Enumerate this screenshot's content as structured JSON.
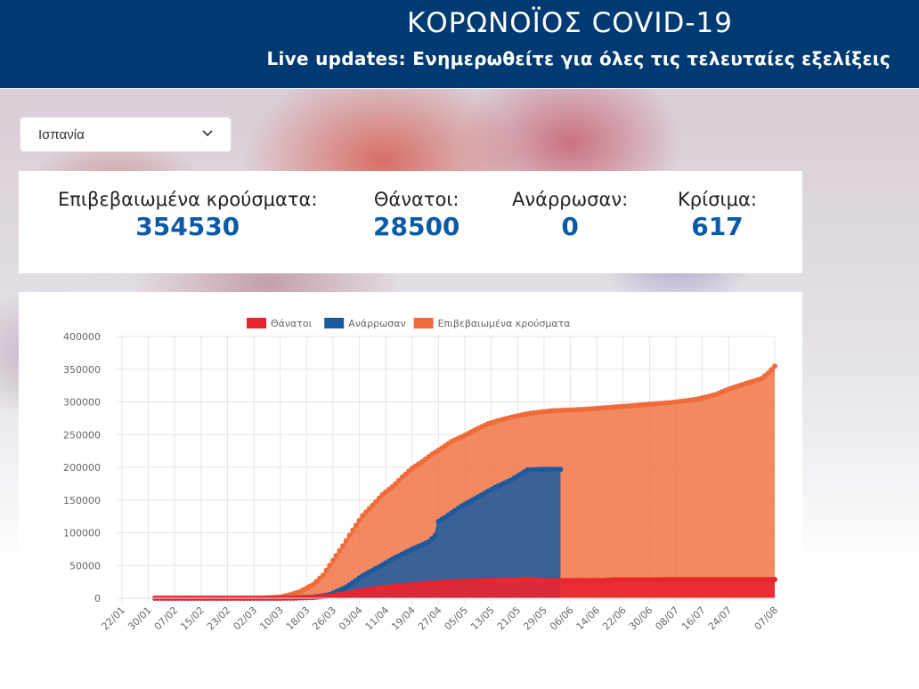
{
  "header": {
    "title": "ΚΟΡΩΝΟΪΟΣ COVID-19",
    "subtitle": "Live updates: Ενημερωθείτε για όλες τις τελευταίες εξελίξεις"
  },
  "country_select": {
    "selected": "Ισπανία",
    "icon": "chevron-down-icon"
  },
  "stats": [
    {
      "label": "Επιβεβαιωμένα κρούσματα:",
      "value": "354530"
    },
    {
      "label": "Θάνατοι:",
      "value": "28500"
    },
    {
      "label": "Ανάρρωσαν:",
      "value": "0"
    },
    {
      "label": "Κρίσιμα:",
      "value": "617"
    }
  ],
  "colors": {
    "header_bg": "#003a72",
    "stat_value": "#0b5aa5",
    "deaths": "#e9252f",
    "recovered": "#1c5aa0",
    "confirmed": "#ef6b3a"
  },
  "chart_data": {
    "type": "area",
    "legend_position": "top",
    "grid": true,
    "ylim": [
      0,
      400000
    ],
    "yticks": [
      "0",
      "50000",
      "100000",
      "150000",
      "200000",
      "250000",
      "300000",
      "350000",
      "400000"
    ],
    "x_start": "22/01",
    "x_end": "07/08",
    "x_tick_labels": [
      "22/01",
      "30/01",
      "07/02",
      "15/02",
      "23/02",
      "02/03",
      "10/03",
      "18/03",
      "26/03",
      "03/04",
      "11/04",
      "19/04",
      "27/04",
      "05/05",
      "13/05",
      "21/05",
      "29/05",
      "06/06",
      "14/06",
      "22/06",
      "30/06",
      "08/07",
      "16/07",
      "24/07",
      "07/08"
    ],
    "series": [
      {
        "name": "Θάνατοι",
        "color": "#e9252f",
        "points": [
          [
            "01/02",
            0
          ],
          [
            "01/03",
            0
          ],
          [
            "10/03",
            36
          ],
          [
            "15/03",
            300
          ],
          [
            "20/03",
            1100
          ],
          [
            "25/03",
            3400
          ],
          [
            "30/03",
            7300
          ],
          [
            "04/04",
            11700
          ],
          [
            "09/04",
            15400
          ],
          [
            "14/04",
            18000
          ],
          [
            "19/04",
            20400
          ],
          [
            "24/04",
            22500
          ],
          [
            "29/04",
            24300
          ],
          [
            "04/05",
            25400
          ],
          [
            "09/05",
            26500
          ],
          [
            "14/05",
            27300
          ],
          [
            "19/05",
            27800
          ],
          [
            "24/05",
            28700
          ],
          [
            "29/05",
            27100
          ],
          [
            "07/06",
            27100
          ],
          [
            "16/06",
            27100
          ],
          [
            "20/06",
            28300
          ],
          [
            "01/07",
            28300
          ],
          [
            "15/07",
            28400
          ],
          [
            "01/08",
            28450
          ],
          [
            "07/08",
            28500
          ]
        ]
      },
      {
        "name": "Ανάρρωσαν",
        "color": "#1c5aa0",
        "points": [
          [
            "01/02",
            0
          ],
          [
            "01/03",
            0
          ],
          [
            "10/03",
            30
          ],
          [
            "15/03",
            500
          ],
          [
            "20/03",
            1600
          ],
          [
            "25/03",
            5400
          ],
          [
            "30/03",
            16800
          ],
          [
            "04/04",
            34200
          ],
          [
            "09/04",
            48000
          ],
          [
            "14/04",
            62400
          ],
          [
            "19/04",
            74800
          ],
          [
            "24/04",
            86000
          ],
          [
            "26/04",
            95700
          ],
          [
            "27/04",
            117200
          ],
          [
            "29/04",
            123500
          ],
          [
            "04/05",
            140800
          ],
          [
            "09/05",
            154700
          ],
          [
            "14/05",
            168900
          ],
          [
            "19/05",
            180500
          ],
          [
            "24/05",
            196000
          ],
          [
            "28/05",
            196900
          ],
          [
            "03/06",
            196900
          ]
        ]
      },
      {
        "name": "Επιβεβαιωμένα κρούσματα",
        "color": "#ef6b3a",
        "points": [
          [
            "01/02",
            0
          ],
          [
            "01/03",
            80
          ],
          [
            "05/03",
            260
          ],
          [
            "10/03",
            1700
          ],
          [
            "13/03",
            5200
          ],
          [
            "16/03",
            10000
          ],
          [
            "20/03",
            21000
          ],
          [
            "23/03",
            35100
          ],
          [
            "26/03",
            57800
          ],
          [
            "29/03",
            80000
          ],
          [
            "01/04",
            104000
          ],
          [
            "04/04",
            126200
          ],
          [
            "07/04",
            141900
          ],
          [
            "10/04",
            158300
          ],
          [
            "13/04",
            170000
          ],
          [
            "16/04",
            184900
          ],
          [
            "19/04",
            198700
          ],
          [
            "22/04",
            208400
          ],
          [
            "25/04",
            219800
          ],
          [
            "28/04",
            229400
          ],
          [
            "01/05",
            239600
          ],
          [
            "04/05",
            246600
          ],
          [
            "08/05",
            256900
          ],
          [
            "12/05",
            266500
          ],
          [
            "16/05",
            272600
          ],
          [
            "20/05",
            277700
          ],
          [
            "25/05",
            282900
          ],
          [
            "01/06",
            286500
          ],
          [
            "10/06",
            288600
          ],
          [
            "20/06",
            292300
          ],
          [
            "30/06",
            296400
          ],
          [
            "07/07",
            299200
          ],
          [
            "14/07",
            303700
          ],
          [
            "20/07",
            311000
          ],
          [
            "24/07",
            319500
          ],
          [
            "29/07",
            327700
          ],
          [
            "03/08",
            335600
          ],
          [
            "05/08",
            344000
          ],
          [
            "07/08",
            354530
          ]
        ]
      }
    ]
  }
}
